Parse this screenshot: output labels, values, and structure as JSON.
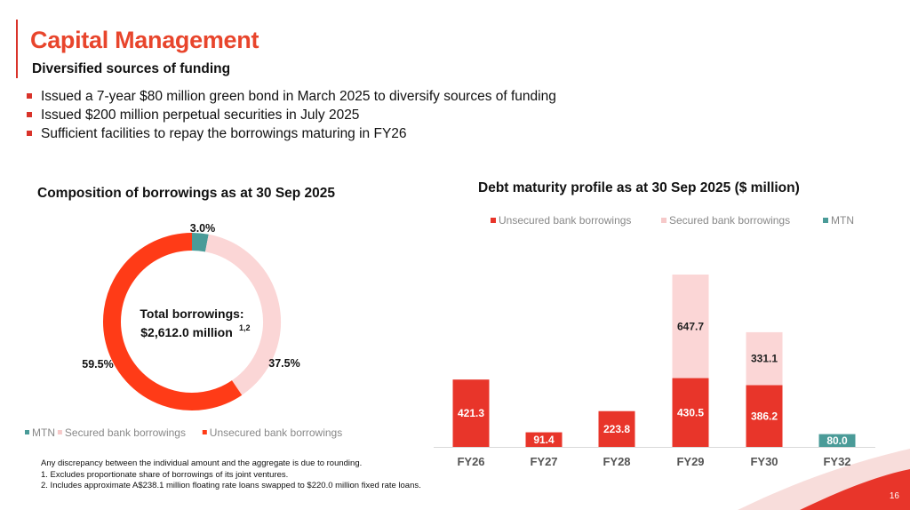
{
  "slide": {
    "title": "Capital Management",
    "subtitle": "Diversified sources of funding",
    "bullets": [
      "Issued a 7-year $80 million green bond in March 2025 to diversify sources of funding",
      "Issued $200 million perpetual securities in July 2025",
      "Sufficient facilities to repay the borrowings maturing in FY26"
    ],
    "footnotes": [
      "Any discrepancy between the individual amount and the aggregate is due to rounding.",
      "1. Excludes proportionate share of borrowings of its joint ventures.",
      "2. Includes approximate A$238.1 million floating rate loans swapped to $220.0 million fixed rate loans."
    ],
    "page_number": "16"
  },
  "chart_data": [
    {
      "type": "pie",
      "variant": "donut",
      "title": "Composition of borrowings as at 30 Sep 2025",
      "center_label": {
        "line1": "Total borrowings:",
        "line2": "$2,612.0 million",
        "superscript": "1,2"
      },
      "slices": [
        {
          "name": "MTN",
          "value": 3.0,
          "label": "3.0%",
          "color": "#4a9b98"
        },
        {
          "name": "Secured bank borrowings",
          "value": 37.5,
          "label": "37.5%",
          "color": "#fbd6d6"
        },
        {
          "name": "Unsecured bank borrowings",
          "value": 59.5,
          "label": "59.5%",
          "color": "#ff3b17"
        }
      ],
      "legend_position": "bottom"
    },
    {
      "type": "bar",
      "stacked": true,
      "title": "Debt maturity profile as at 30 Sep 2025 ($ million)",
      "categories": [
        "FY26",
        "FY27",
        "FY28",
        "FY29",
        "FY30",
        "FY32"
      ],
      "series": [
        {
          "name": "Unsecured bank borrowings",
          "color": "#e8352a",
          "values": [
            421.3,
            91.4,
            223.8,
            430.5,
            386.2,
            0
          ]
        },
        {
          "name": "Secured bank borrowings",
          "color": "#fbd6d6",
          "values": [
            0,
            0,
            0,
            647.7,
            331.1,
            0
          ]
        },
        {
          "name": "MTN",
          "color": "#4a9b98",
          "values": [
            0,
            0,
            0,
            0,
            0,
            80.0
          ]
        }
      ],
      "legend_position": "top",
      "grid": false
    }
  ]
}
